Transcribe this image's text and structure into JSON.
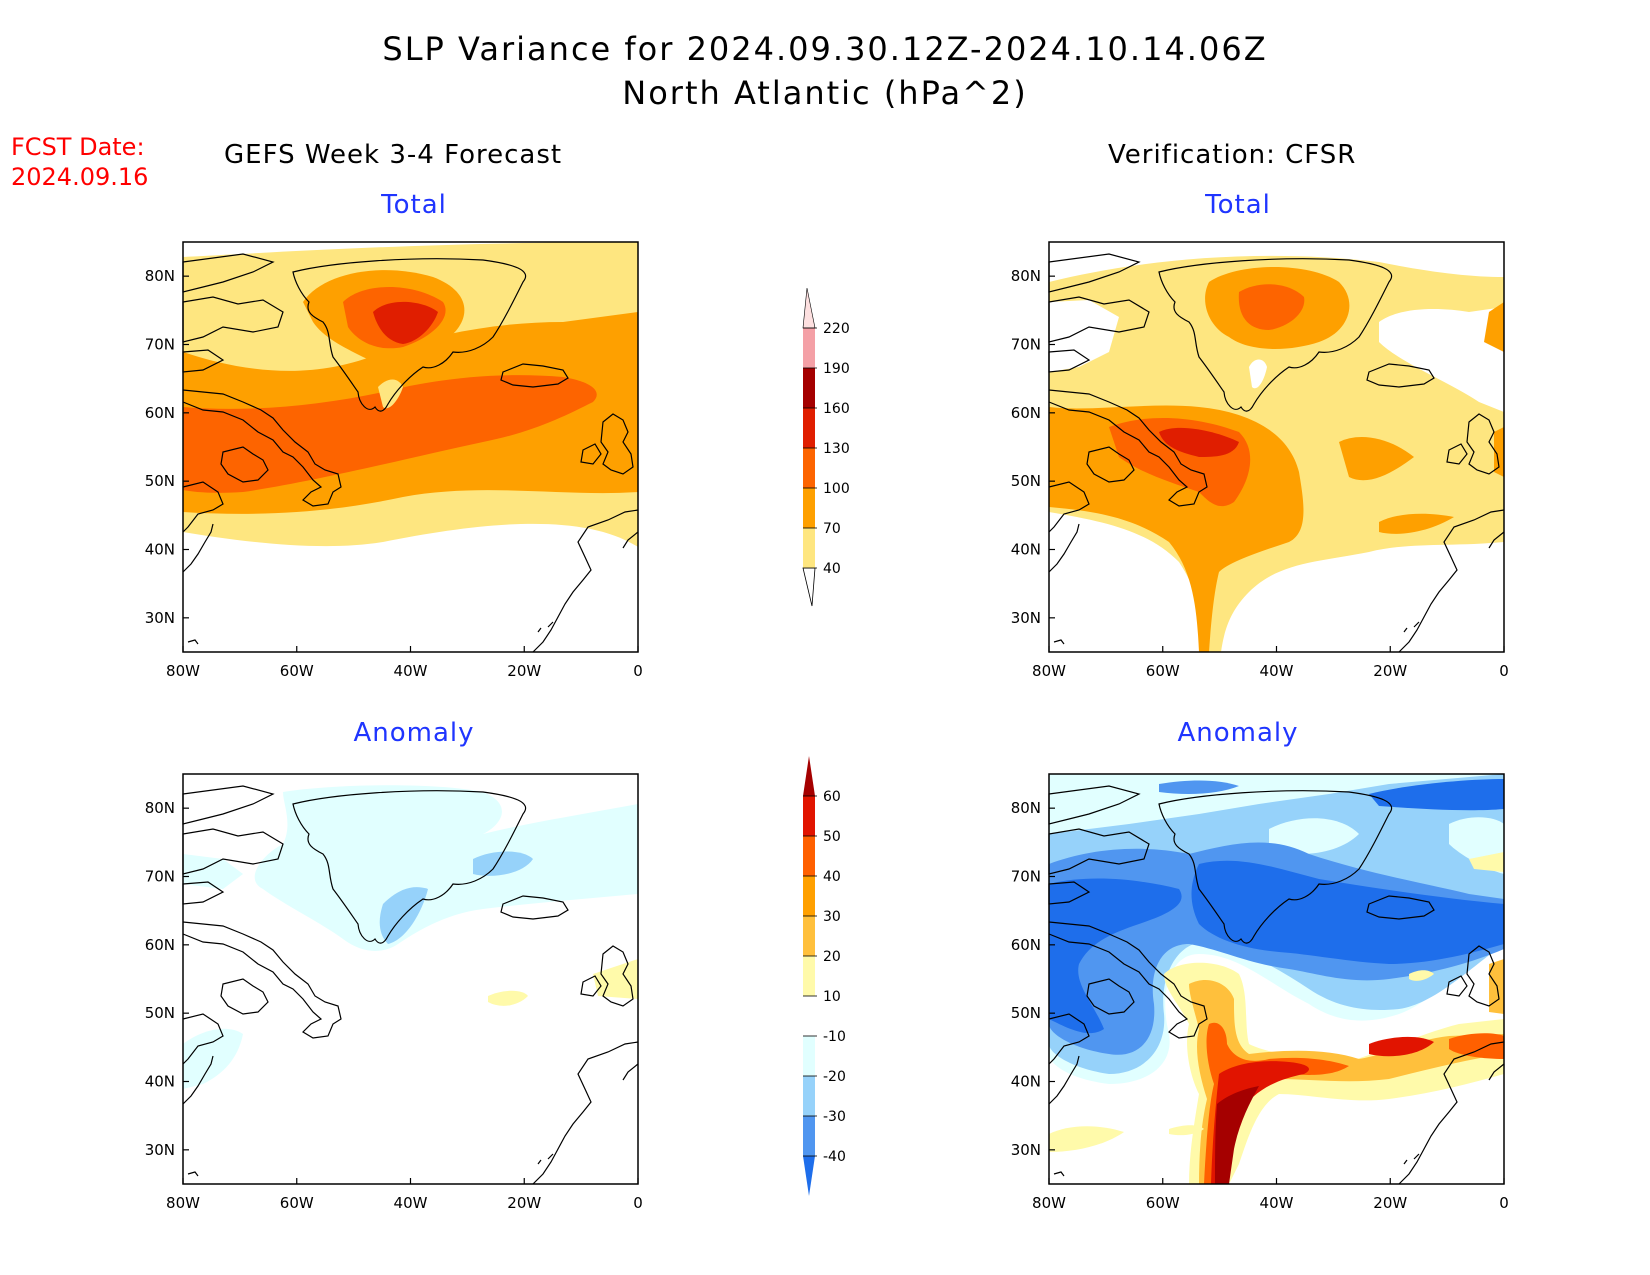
{
  "title": {
    "line1": "SLP Variance for 2024.09.30.12Z-2024.10.14.06Z",
    "line2": "North Atlantic (hPa^2)"
  },
  "forecast_date": {
    "label": "FCST Date:",
    "value": "2024.09.16"
  },
  "columns": {
    "left": "GEFS Week 3-4 Forecast",
    "right": "Verification: CFSR"
  },
  "panels": {
    "top_left": "Total",
    "top_right": "Total",
    "bottom_left": "Anomaly",
    "bottom_right": "Anomaly"
  },
  "axes": {
    "lon_labels": [
      "80W",
      "60W",
      "40W",
      "20W",
      "0"
    ],
    "lat_labels": [
      "80N",
      "70N",
      "60N",
      "50N",
      "40N",
      "30N"
    ]
  },
  "colorbars": {
    "total": {
      "levels": [
        "40",
        "70",
        "100",
        "130",
        "160",
        "190",
        "220"
      ],
      "colors": [
        "#fee680",
        "#fea000",
        "#fd6400",
        "#e01e00",
        "#a50000",
        "#f4a0a6",
        "#fde0e0"
      ]
    },
    "anomaly": {
      "levels": [
        "-40",
        "-30",
        "-20",
        "-10",
        "10",
        "20",
        "30",
        "40",
        "50",
        "60"
      ],
      "colors": [
        "#1e6eeb",
        "#5096f0",
        "#96d2fa",
        "#e1ffff",
        "#ffffff",
        "#fffaaa",
        "#ffc03c",
        "#ffa000",
        "#ff6000",
        "#e11400",
        "#a50000"
      ]
    }
  }
}
